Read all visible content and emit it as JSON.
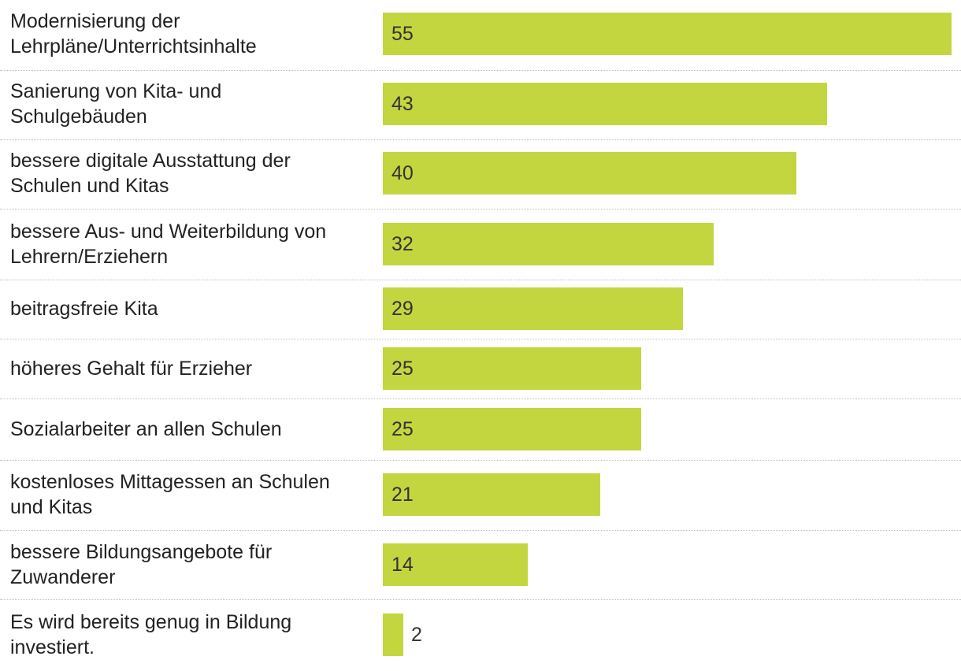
{
  "chart_data": {
    "type": "bar",
    "orientation": "horizontal",
    "categories": [
      "Modernisierung der Lehrpläne/Unterrichtsinhalte",
      "Sanierung von Kita- und Schulgebäuden",
      "bessere digitale Ausstattung der Schulen und Kitas",
      "bessere Aus- und Weiterbildung von Lehrern/Erziehern",
      "beitragsfreie Kita",
      "höheres Gehalt für Erzieher",
      "Sozialarbeiter an allen Schulen",
      "kostenloses Mittagessen an Schulen und Kitas",
      "bessere Bildungsangebote für Zuwanderer",
      "Es wird bereits genug in Bildung investiert."
    ],
    "label_lines": [
      [
        "Modernisierung der",
        "Lehrpläne/Unterrichtsinhalte"
      ],
      [
        "Sanierung von Kita- und",
        "Schulgebäuden"
      ],
      [
        "bessere digitale Ausstattung der",
        "Schulen und Kitas"
      ],
      [
        "bessere Aus- und Weiterbildung von",
        "Lehrern/Erziehern"
      ],
      [
        "beitragsfreie Kita"
      ],
      [
        "höheres Gehalt für Erzieher"
      ],
      [
        "Sozialarbeiter an allen Schulen"
      ],
      [
        "kostenloses Mittagessen an Schulen",
        "und Kitas"
      ],
      [
        "bessere Bildungsangebote für",
        "Zuwanderer"
      ],
      [
        "Es wird bereits genug in Bildung",
        "investiert."
      ]
    ],
    "values": [
      55,
      43,
      40,
      32,
      29,
      25,
      25,
      21,
      14,
      2
    ],
    "value_labels": [
      "55",
      "43",
      "40",
      "32",
      "29",
      "25",
      "25",
      "21",
      "14",
      "2"
    ],
    "title": "",
    "xlabel": "",
    "ylabel": "",
    "xlim": [
      0,
      55
    ],
    "grid": false,
    "legend": "none",
    "bar_color": "#c4d63f",
    "divider_color": "#bdbdbd",
    "text_color": "#222222"
  }
}
